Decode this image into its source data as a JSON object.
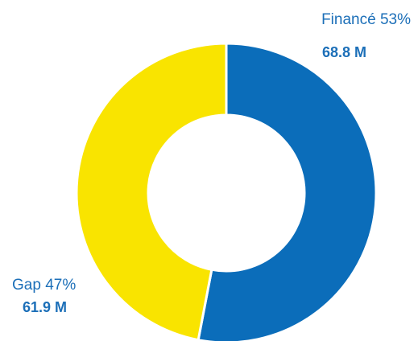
{
  "chart_data": {
    "type": "donut",
    "categories": [
      "Financé",
      "Gap"
    ],
    "values": [
      53,
      47
    ],
    "value_labels": [
      "53%",
      "47%"
    ],
    "amounts": [
      68.8,
      61.9
    ],
    "amount_labels": [
      "68.8 M",
      "61.9 M"
    ],
    "colors": [
      "#0b6dba",
      "#f9e400"
    ]
  }
}
